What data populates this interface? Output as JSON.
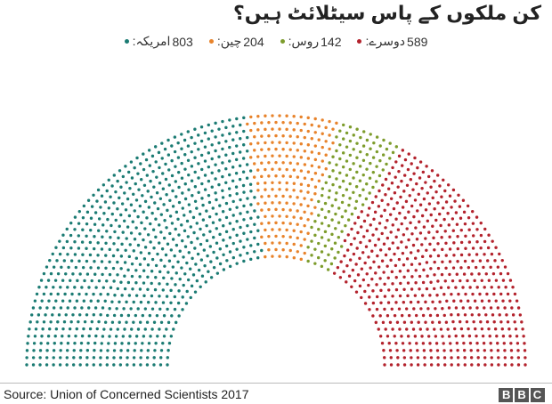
{
  "chart_data": {
    "type": "parliament",
    "title": "کن ملکوں کے پاس سیٹلائٹ ہیں؟",
    "series": [
      {
        "name": "امریکہ:",
        "color": "#1b7b73",
        "value": 803
      },
      {
        "name": "چین:",
        "color": "#e8832b",
        "value": 204
      },
      {
        "name": "روس:",
        "color": "#7d9c2c",
        "value": 142
      },
      {
        "name": "دوسرے:",
        "color": "#b3222c",
        "value": 589
      }
    ],
    "source": "Source: Union of Concerned Scientists 2017",
    "logo": "BBC"
  }
}
